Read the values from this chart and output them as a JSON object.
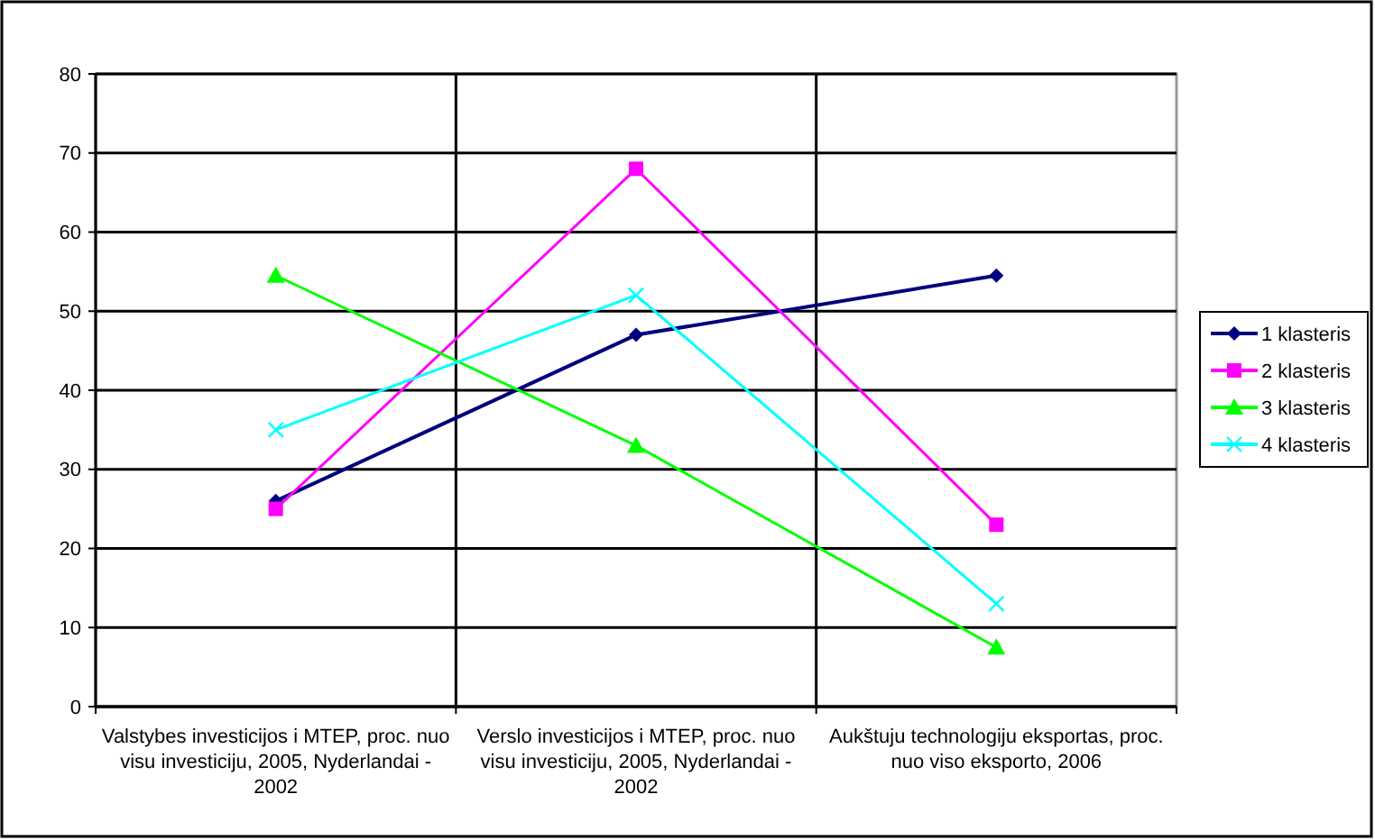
{
  "chart_data": {
    "type": "line",
    "categories": [
      "Valstybes investicijos i MTEP, proc. nuo visu investiciju, 2005, Nyderlandai - 2002",
      "Verslo investicijos i MTEP, proc. nuo visu investiciju, 2005, Nyderlandai - 2002",
      "Aukštuju technologiju eksportas, proc. nuo viso eksporto, 2006"
    ],
    "series": [
      {
        "name": "1 klasteris",
        "color": "#000080",
        "marker": "diamond",
        "values": [
          26,
          47,
          54.5
        ]
      },
      {
        "name": "2 klasteris",
        "color": "#ff00ff",
        "marker": "square",
        "values": [
          25,
          68,
          23
        ]
      },
      {
        "name": "3 klasteris",
        "color": "#00ff00",
        "marker": "triangle",
        "values": [
          54.5,
          33,
          7.5
        ]
      },
      {
        "name": "4 klasteris",
        "color": "#00ffff",
        "marker": "cross",
        "values": [
          35,
          52,
          13
        ]
      }
    ],
    "ylim": [
      0,
      80
    ],
    "yticks": [
      0,
      10,
      20,
      30,
      40,
      50,
      60,
      70,
      80
    ],
    "grid": true,
    "legend": "right"
  }
}
